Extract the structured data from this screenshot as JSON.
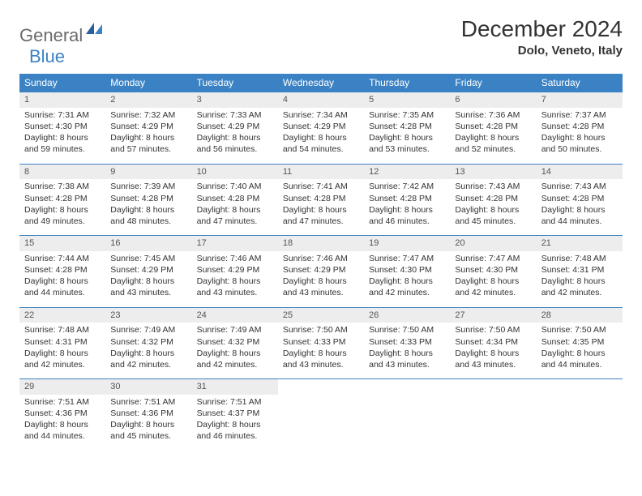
{
  "logo": {
    "part1": "General",
    "part2": "Blue"
  },
  "title": "December 2024",
  "location": "Dolo, Veneto, Italy",
  "colors": {
    "header_bg": "#3b82c4",
    "header_text": "#ffffff",
    "daynum_bg": "#ededed",
    "border": "#3b82c4",
    "logo_gray": "#6b6b6b",
    "logo_blue": "#3b82c4"
  },
  "weekdays": [
    "Sunday",
    "Monday",
    "Tuesday",
    "Wednesday",
    "Thursday",
    "Friday",
    "Saturday"
  ],
  "days": [
    {
      "n": 1,
      "sr": "7:31 AM",
      "ss": "4:30 PM",
      "dl": "8 hours and 59 minutes."
    },
    {
      "n": 2,
      "sr": "7:32 AM",
      "ss": "4:29 PM",
      "dl": "8 hours and 57 minutes."
    },
    {
      "n": 3,
      "sr": "7:33 AM",
      "ss": "4:29 PM",
      "dl": "8 hours and 56 minutes."
    },
    {
      "n": 4,
      "sr": "7:34 AM",
      "ss": "4:29 PM",
      "dl": "8 hours and 54 minutes."
    },
    {
      "n": 5,
      "sr": "7:35 AM",
      "ss": "4:28 PM",
      "dl": "8 hours and 53 minutes."
    },
    {
      "n": 6,
      "sr": "7:36 AM",
      "ss": "4:28 PM",
      "dl": "8 hours and 52 minutes."
    },
    {
      "n": 7,
      "sr": "7:37 AM",
      "ss": "4:28 PM",
      "dl": "8 hours and 50 minutes."
    },
    {
      "n": 8,
      "sr": "7:38 AM",
      "ss": "4:28 PM",
      "dl": "8 hours and 49 minutes."
    },
    {
      "n": 9,
      "sr": "7:39 AM",
      "ss": "4:28 PM",
      "dl": "8 hours and 48 minutes."
    },
    {
      "n": 10,
      "sr": "7:40 AM",
      "ss": "4:28 PM",
      "dl": "8 hours and 47 minutes."
    },
    {
      "n": 11,
      "sr": "7:41 AM",
      "ss": "4:28 PM",
      "dl": "8 hours and 47 minutes."
    },
    {
      "n": 12,
      "sr": "7:42 AM",
      "ss": "4:28 PM",
      "dl": "8 hours and 46 minutes."
    },
    {
      "n": 13,
      "sr": "7:43 AM",
      "ss": "4:28 PM",
      "dl": "8 hours and 45 minutes."
    },
    {
      "n": 14,
      "sr": "7:43 AM",
      "ss": "4:28 PM",
      "dl": "8 hours and 44 minutes."
    },
    {
      "n": 15,
      "sr": "7:44 AM",
      "ss": "4:28 PM",
      "dl": "8 hours and 44 minutes."
    },
    {
      "n": 16,
      "sr": "7:45 AM",
      "ss": "4:29 PM",
      "dl": "8 hours and 43 minutes."
    },
    {
      "n": 17,
      "sr": "7:46 AM",
      "ss": "4:29 PM",
      "dl": "8 hours and 43 minutes."
    },
    {
      "n": 18,
      "sr": "7:46 AM",
      "ss": "4:29 PM",
      "dl": "8 hours and 43 minutes."
    },
    {
      "n": 19,
      "sr": "7:47 AM",
      "ss": "4:30 PM",
      "dl": "8 hours and 42 minutes."
    },
    {
      "n": 20,
      "sr": "7:47 AM",
      "ss": "4:30 PM",
      "dl": "8 hours and 42 minutes."
    },
    {
      "n": 21,
      "sr": "7:48 AM",
      "ss": "4:31 PM",
      "dl": "8 hours and 42 minutes."
    },
    {
      "n": 22,
      "sr": "7:48 AM",
      "ss": "4:31 PM",
      "dl": "8 hours and 42 minutes."
    },
    {
      "n": 23,
      "sr": "7:49 AM",
      "ss": "4:32 PM",
      "dl": "8 hours and 42 minutes."
    },
    {
      "n": 24,
      "sr": "7:49 AM",
      "ss": "4:32 PM",
      "dl": "8 hours and 42 minutes."
    },
    {
      "n": 25,
      "sr": "7:50 AM",
      "ss": "4:33 PM",
      "dl": "8 hours and 43 minutes."
    },
    {
      "n": 26,
      "sr": "7:50 AM",
      "ss": "4:33 PM",
      "dl": "8 hours and 43 minutes."
    },
    {
      "n": 27,
      "sr": "7:50 AM",
      "ss": "4:34 PM",
      "dl": "8 hours and 43 minutes."
    },
    {
      "n": 28,
      "sr": "7:50 AM",
      "ss": "4:35 PM",
      "dl": "8 hours and 44 minutes."
    },
    {
      "n": 29,
      "sr": "7:51 AM",
      "ss": "4:36 PM",
      "dl": "8 hours and 44 minutes."
    },
    {
      "n": 30,
      "sr": "7:51 AM",
      "ss": "4:36 PM",
      "dl": "8 hours and 45 minutes."
    },
    {
      "n": 31,
      "sr": "7:51 AM",
      "ss": "4:37 PM",
      "dl": "8 hours and 46 minutes."
    }
  ],
  "labels": {
    "sunrise": "Sunrise:",
    "sunset": "Sunset:",
    "daylight": "Daylight:"
  },
  "layout": {
    "start_weekday": 0,
    "total_days": 31,
    "cols": 7
  }
}
